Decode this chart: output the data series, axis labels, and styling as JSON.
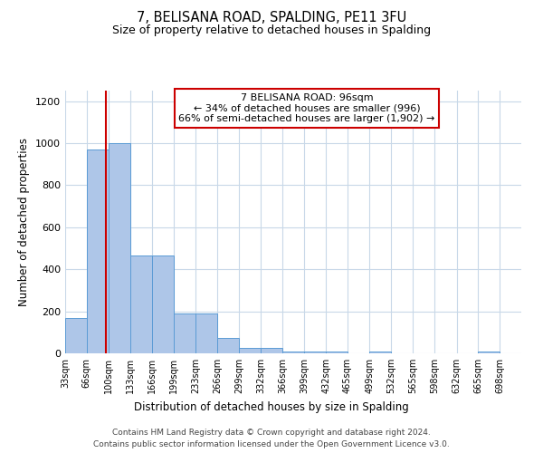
{
  "title": "7, BELISANA ROAD, SPALDING, PE11 3FU",
  "subtitle": "Size of property relative to detached houses in Spalding",
  "xlabel": "Distribution of detached houses by size in Spalding",
  "ylabel": "Number of detached properties",
  "bin_labels": [
    "33sqm",
    "66sqm",
    "100sqm",
    "133sqm",
    "166sqm",
    "199sqm",
    "233sqm",
    "266sqm",
    "299sqm",
    "332sqm",
    "366sqm",
    "399sqm",
    "432sqm",
    "465sqm",
    "499sqm",
    "532sqm",
    "565sqm",
    "598sqm",
    "632sqm",
    "665sqm",
    "698sqm"
  ],
  "bar_heights": [
    170,
    970,
    1000,
    465,
    465,
    190,
    190,
    75,
    25,
    25,
    10,
    10,
    10,
    0,
    10,
    0,
    0,
    0,
    0,
    10,
    0
  ],
  "bar_color": "#aec6e8",
  "bar_edge_color": "#5b9bd5",
  "vline_x": 96,
  "vline_color": "#cc0000",
  "annotation_title": "7 BELISANA ROAD: 96sqm",
  "annotation_line1": "← 34% of detached houses are smaller (996)",
  "annotation_line2": "66% of semi-detached houses are larger (1,902) →",
  "annotation_box_color": "#cc0000",
  "ylim": [
    0,
    1250
  ],
  "yticks": [
    0,
    200,
    400,
    600,
    800,
    1000,
    1200
  ],
  "bin_edges": [
    33,
    66,
    100,
    133,
    166,
    199,
    233,
    266,
    299,
    332,
    366,
    399,
    432,
    465,
    499,
    532,
    565,
    598,
    632,
    665,
    698,
    731
  ],
  "footer_line1": "Contains HM Land Registry data © Crown copyright and database right 2024.",
  "footer_line2": "Contains public sector information licensed under the Open Government Licence v3.0.",
  "background_color": "#ffffff",
  "grid_color": "#c8d8e8"
}
